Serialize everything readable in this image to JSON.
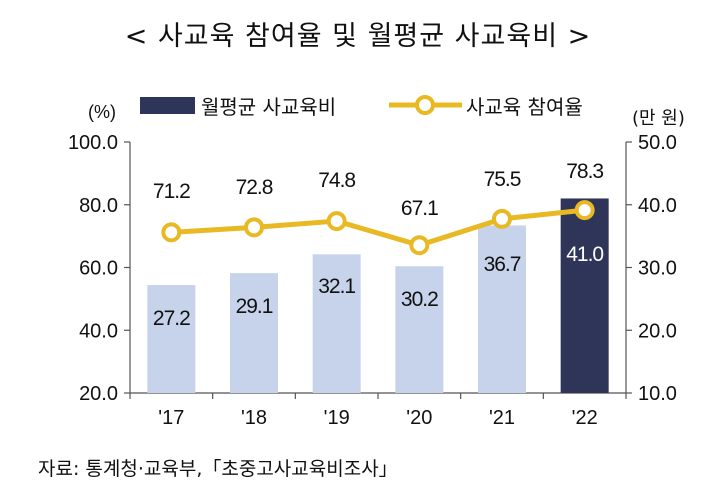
{
  "title": "< 사교육 참여율 및 월평균 사교육비 >",
  "source": "자료: 통계청·교육부,「초중고사교육비조사」",
  "colors": {
    "bar": "#c6d3ea",
    "bar_highlight": "#2e3558",
    "line": "#e8b923",
    "marker_fill": "#ffffff",
    "axis": "#555555",
    "text": "#111111"
  },
  "chart_data": {
    "type": "bar+line",
    "categories": [
      "'17",
      "'18",
      "'19",
      "'20",
      "'21",
      "'22"
    ],
    "left_axis": {
      "unit_label": "(%)",
      "ylim": [
        20,
        100
      ],
      "ticks": [
        "20.0",
        "40.0",
        "60.0",
        "80.0",
        "100.0"
      ]
    },
    "right_axis": {
      "unit_label": "(만 원)",
      "ylim": [
        10,
        50
      ],
      "ticks": [
        "10.0",
        "20.0",
        "30.0",
        "40.0",
        "50.0"
      ]
    },
    "series": [
      {
        "name": "월평균 사교육비",
        "type": "bar",
        "axis": "right",
        "values": [
          27.2,
          29.1,
          32.1,
          30.2,
          36.7,
          41.0
        ],
        "labels": [
          "27.2",
          "29.1",
          "32.1",
          "30.2",
          "36.7",
          "41.0"
        ],
        "highlight_index": 5
      },
      {
        "name": "사교육 참여율",
        "type": "line",
        "axis": "left",
        "values": [
          71.2,
          72.8,
          74.8,
          67.1,
          75.5,
          78.3
        ],
        "labels": [
          "71.2",
          "72.8",
          "74.8",
          "67.1",
          "75.5",
          "78.3"
        ]
      }
    ],
    "legend_position": "top",
    "grid": false
  }
}
